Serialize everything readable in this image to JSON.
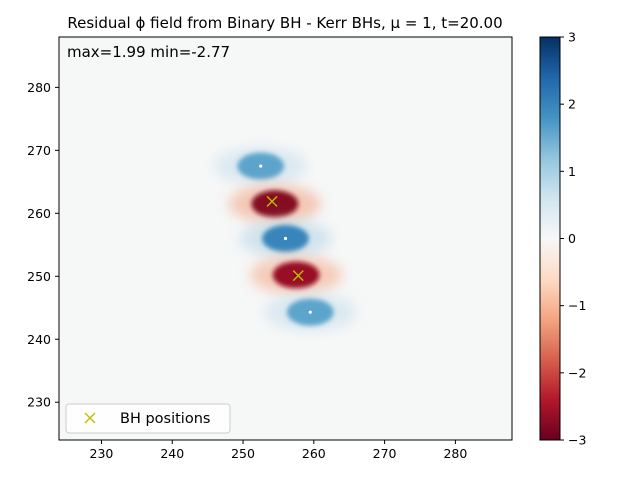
{
  "chart_data": {
    "type": "heatmap",
    "title": "Residual ϕ field from Binary BH - Kerr BHs, μ = 1, t=20.00",
    "annotation": "max=1.99 min=-2.77",
    "xlim": [
      224,
      288
    ],
    "ylim": [
      224,
      288
    ],
    "x_ticks": [
      230,
      240,
      250,
      260,
      270,
      280
    ],
    "y_ticks": [
      230,
      240,
      250,
      260,
      270,
      280
    ],
    "colorbar": {
      "colormap": "RdBu",
      "range": [
        -3,
        3
      ],
      "ticks": [
        3,
        2,
        1,
        0,
        -1,
        -2,
        -3
      ],
      "tick_labels": [
        "3",
        "2",
        "1",
        "0",
        "−1",
        "−2",
        "−3"
      ]
    },
    "field_blobs": [
      {
        "x": 252.5,
        "y": 267.5,
        "value": 1.6
      },
      {
        "x": 254.5,
        "y": 261.5,
        "value": -2.77
      },
      {
        "x": 256.0,
        "y": 256.0,
        "value": 1.99
      },
      {
        "x": 257.5,
        "y": 250.2,
        "value": -2.6
      },
      {
        "x": 259.5,
        "y": 244.3,
        "value": 1.6
      }
    ],
    "series": [
      {
        "name": "BH positions",
        "marker": "x",
        "color": "#bfbf00",
        "points": [
          [
            254.1,
            261.9
          ],
          [
            257.8,
            250.1
          ]
        ]
      }
    ],
    "legend": {
      "placement": "lower-left",
      "entries": [
        "BH positions"
      ]
    },
    "grid": false
  }
}
